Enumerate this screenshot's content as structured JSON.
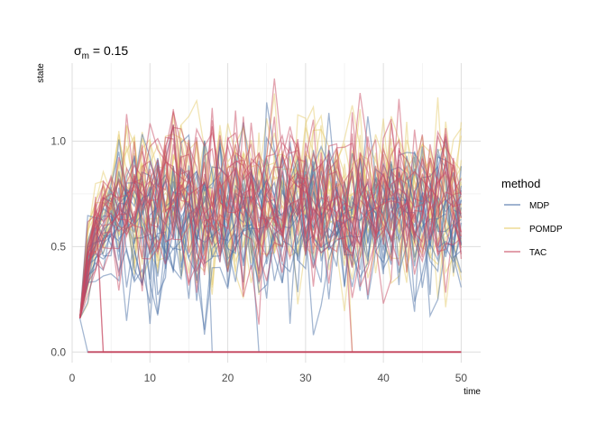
{
  "chart_data": {
    "type": "line",
    "title_symbol": "σ",
    "title_subscript": "m",
    "title_rest": " = 0.15",
    "xlabel": "time",
    "ylabel": "state",
    "xlim": [
      0,
      52.5
    ],
    "ylim": [
      -0.05,
      1.37
    ],
    "x_ticks": [
      0,
      10,
      20,
      30,
      40,
      50
    ],
    "x_tick_labels": [
      "0",
      "10",
      "20",
      "30",
      "40",
      "50"
    ],
    "x_minor_ticks": [
      5,
      15,
      25,
      35,
      45
    ],
    "y_ticks": [
      0,
      0.5,
      1.0
    ],
    "y_tick_labels": [
      "0.0",
      "0.5",
      "1.0"
    ],
    "y_minor_ticks": [
      0.25,
      0.75,
      1.25
    ],
    "grid": true,
    "legend": {
      "title": "method",
      "position": "right"
    },
    "series": [
      {
        "name": "MDP",
        "color": "#4A6FA5"
      },
      {
        "name": "POMDP",
        "color": "#E6CC6B"
      },
      {
        "name": "TAC",
        "color": "#C84A62"
      }
    ],
    "replicates_per_method": 20,
    "start": {
      "x": 1,
      "y": 0.16
    },
    "x_end": 50
  }
}
